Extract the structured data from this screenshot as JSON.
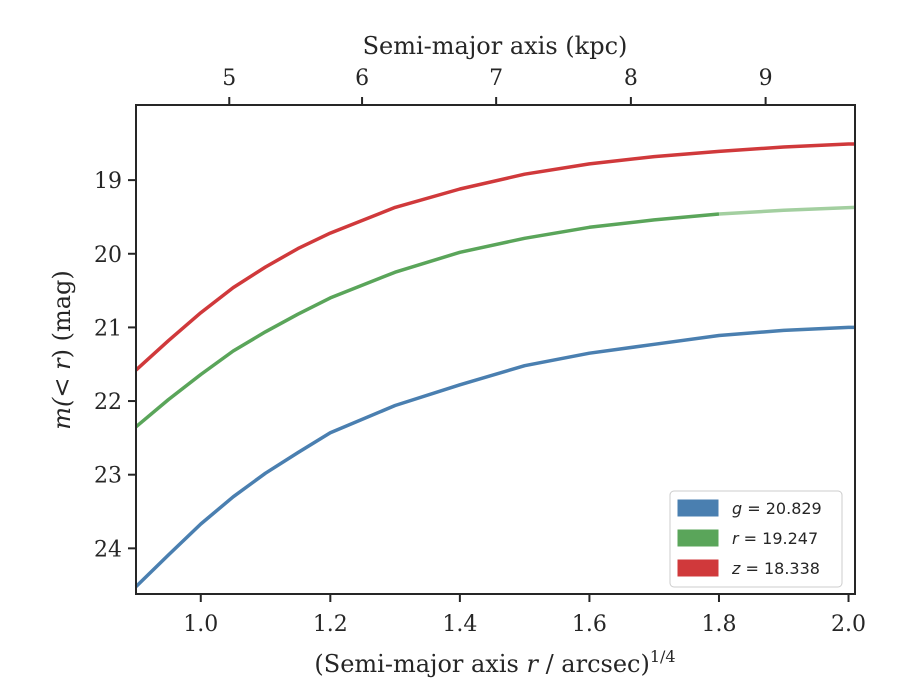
{
  "chart_data": {
    "type": "line",
    "xlabel_bottom": {
      "prefix": "(Semi-major axis ",
      "var": "r",
      "suffix": " / arcsec)",
      "sup": "1/4"
    },
    "xlabel_top": "Semi-major axis (kpc)",
    "ylabel": {
      "prefix": "m(< ",
      "var": "r",
      "suffix": ") (mag)"
    },
    "xlim": [
      0.9,
      2.01
    ],
    "ylim": [
      24.62,
      17.98
    ],
    "y_inverted": true,
    "x_ticks": [
      1.0,
      1.2,
      1.4,
      1.6,
      1.8,
      2.0
    ],
    "x_tick_labels": [
      "1.0",
      "1.2",
      "1.4",
      "1.6",
      "1.8",
      "2.0"
    ],
    "y_ticks": [
      19,
      20,
      21,
      22,
      23,
      24
    ],
    "y_tick_labels": [
      "19",
      "20",
      "21",
      "22",
      "23",
      "24"
    ],
    "top_ticks_kpc": [
      5,
      6,
      7,
      8,
      9
    ],
    "top_tick_labels": [
      "5",
      "6",
      "7",
      "8",
      "9"
    ],
    "top_tick_positions_x": [
      1.044,
      1.249,
      1.456,
      1.664,
      1.872
    ],
    "grid": false,
    "legend_position": "bottom-right",
    "series": [
      {
        "name": "g = 20.829",
        "color": "#4a7fb0",
        "x": [
          0.9,
          0.95,
          1.0,
          1.05,
          1.1,
          1.15,
          1.2,
          1.3,
          1.4,
          1.5,
          1.6,
          1.7,
          1.8,
          1.9,
          2.0,
          2.01
        ],
        "y": [
          24.52,
          24.09,
          23.67,
          23.3,
          22.98,
          22.7,
          22.43,
          22.06,
          21.78,
          21.52,
          21.35,
          21.23,
          21.11,
          21.04,
          21.0,
          21.0
        ]
      },
      {
        "name": "r = 19.247",
        "color": "#5aa55a",
        "x": [
          0.9,
          0.95,
          1.0,
          1.05,
          1.1,
          1.15,
          1.2,
          1.3,
          1.4,
          1.5,
          1.6,
          1.7,
          1.8
        ],
        "y": [
          22.35,
          21.98,
          21.64,
          21.32,
          21.06,
          20.82,
          20.6,
          20.25,
          19.98,
          19.79,
          19.64,
          19.54,
          19.46
        ]
      },
      {
        "name": "r extension",
        "color": "#a3cfa0",
        "x": [
          1.8,
          1.9,
          2.01
        ],
        "y": [
          19.46,
          19.41,
          19.37
        ]
      },
      {
        "name": "z = 18.338",
        "color": "#d0393b",
        "x": [
          0.9,
          0.95,
          1.0,
          1.05,
          1.1,
          1.15,
          1.2,
          1.3,
          1.4,
          1.5,
          1.6,
          1.7,
          1.8,
          1.9,
          2.0,
          2.01
        ],
        "y": [
          21.58,
          21.18,
          20.8,
          20.46,
          20.18,
          19.93,
          19.72,
          19.37,
          19.12,
          18.92,
          18.78,
          18.68,
          18.61,
          18.55,
          18.51,
          18.51
        ]
      }
    ],
    "legend": [
      {
        "label": "g = 20.829",
        "var": "g",
        "value": "= 20.829",
        "color": "#4a7fb0"
      },
      {
        "label": "r = 19.247",
        "var": "r",
        "value": "= 19.247",
        "color": "#5aa55a"
      },
      {
        "label": "z = 18.338",
        "var": "z",
        "value": "= 18.338",
        "color": "#d0393b"
      }
    ]
  }
}
